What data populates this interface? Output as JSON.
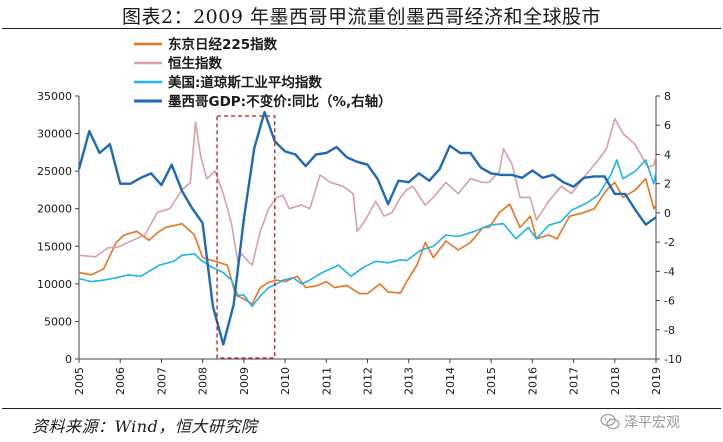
{
  "header": {
    "title": "图表2：2009 年墨西哥甲流重创墨西哥经济和全球股市"
  },
  "footer": {
    "source": "资料来源：Wind，恒大研究院",
    "watermark": "泽平宏观"
  },
  "colors": {
    "nikkei": "#E8741E",
    "hangseng": "#D9A0A6",
    "dow": "#1EB4EC",
    "gdp": "#1E6AB4",
    "highlight": "#B22222"
  },
  "chart_data": {
    "type": "line",
    "title": "",
    "x_tick_labels": [
      "2005",
      "2006",
      "2007",
      "2008",
      "2009",
      "2010",
      "2011",
      "2012",
      "2013",
      "2014",
      "2015",
      "2016",
      "2017",
      "2018",
      "2019"
    ],
    "xlim": [
      2005.0,
      2019.0
    ],
    "y_left": {
      "lim": [
        0,
        35000
      ],
      "ticks": [
        0,
        5000,
        10000,
        15000,
        20000,
        25000,
        30000,
        35000
      ]
    },
    "y_right": {
      "lim": [
        -10,
        8
      ],
      "ticks": [
        -10,
        -8,
        -6,
        -4,
        -2,
        0,
        2,
        4,
        6,
        8
      ]
    },
    "highlight_box": {
      "x_start": 2008.35,
      "x_end": 2009.75
    },
    "legend": [
      "东京日经225指数",
      "恒生指数",
      "美国:道琼斯工业平均指数",
      "墨西哥GDP:不变价:同比（%,右轴）"
    ],
    "series": [
      {
        "name": "东京日经225指数",
        "axis": "left",
        "color_key": "nikkei",
        "points": [
          [
            2005.0,
            11500
          ],
          [
            2005.3,
            11200
          ],
          [
            2005.6,
            12000
          ],
          [
            2005.9,
            15500
          ],
          [
            2006.1,
            16500
          ],
          [
            2006.4,
            17000
          ],
          [
            2006.7,
            15800
          ],
          [
            2006.9,
            16800
          ],
          [
            2007.1,
            17500
          ],
          [
            2007.5,
            18000
          ],
          [
            2007.8,
            16500
          ],
          [
            2008.0,
            13500
          ],
          [
            2008.3,
            13000
          ],
          [
            2008.6,
            12500
          ],
          [
            2008.8,
            8500
          ],
          [
            2009.0,
            8000
          ],
          [
            2009.2,
            7300
          ],
          [
            2009.4,
            9500
          ],
          [
            2009.6,
            10200
          ],
          [
            2009.8,
            10500
          ],
          [
            2010.0,
            10300
          ],
          [
            2010.3,
            11000
          ],
          [
            2010.5,
            9500
          ],
          [
            2010.8,
            9800
          ],
          [
            2011.0,
            10300
          ],
          [
            2011.2,
            9500
          ],
          [
            2011.5,
            9800
          ],
          [
            2011.8,
            8700
          ],
          [
            2012.0,
            8700
          ],
          [
            2012.3,
            10000
          ],
          [
            2012.5,
            8900
          ],
          [
            2012.8,
            8800
          ],
          [
            2012.95,
            10300
          ],
          [
            2013.2,
            12500
          ],
          [
            2013.4,
            15500
          ],
          [
            2013.6,
            13500
          ],
          [
            2013.9,
            15700
          ],
          [
            2014.2,
            14500
          ],
          [
            2014.5,
            15500
          ],
          [
            2014.8,
            17500
          ],
          [
            2014.95,
            17500
          ],
          [
            2015.2,
            19500
          ],
          [
            2015.45,
            20600
          ],
          [
            2015.7,
            17500
          ],
          [
            2015.95,
            19000
          ],
          [
            2016.1,
            16000
          ],
          [
            2016.4,
            16500
          ],
          [
            2016.6,
            16000
          ],
          [
            2016.9,
            19000
          ],
          [
            2017.2,
            19400
          ],
          [
            2017.5,
            20000
          ],
          [
            2017.8,
            22500
          ],
          [
            2018.0,
            23500
          ],
          [
            2018.2,
            21500
          ],
          [
            2018.5,
            22500
          ],
          [
            2018.75,
            24000
          ],
          [
            2018.95,
            20000
          ],
          [
            2019.0,
            20500
          ]
        ]
      },
      {
        "name": "恒生指数",
        "axis": "left",
        "color_key": "hangseng",
        "points": [
          [
            2005.0,
            13800
          ],
          [
            2005.4,
            13600
          ],
          [
            2005.7,
            14800
          ],
          [
            2005.95,
            14900
          ],
          [
            2006.3,
            15800
          ],
          [
            2006.6,
            16500
          ],
          [
            2006.9,
            19500
          ],
          [
            2007.2,
            20000
          ],
          [
            2007.5,
            22500
          ],
          [
            2007.7,
            23500
          ],
          [
            2007.83,
            31500
          ],
          [
            2007.95,
            27000
          ],
          [
            2008.1,
            24000
          ],
          [
            2008.3,
            25000
          ],
          [
            2008.5,
            22000
          ],
          [
            2008.7,
            18000
          ],
          [
            2008.85,
            13000
          ],
          [
            2008.95,
            14000
          ],
          [
            2009.1,
            13000
          ],
          [
            2009.2,
            12500
          ],
          [
            2009.4,
            17000
          ],
          [
            2009.6,
            20000
          ],
          [
            2009.8,
            21500
          ],
          [
            2009.95,
            21800
          ],
          [
            2010.1,
            20000
          ],
          [
            2010.4,
            20500
          ],
          [
            2010.6,
            20000
          ],
          [
            2010.85,
            24500
          ],
          [
            2011.1,
            23500
          ],
          [
            2011.4,
            23000
          ],
          [
            2011.65,
            22000
          ],
          [
            2011.75,
            17000
          ],
          [
            2011.95,
            18500
          ],
          [
            2012.2,
            21000
          ],
          [
            2012.4,
            19000
          ],
          [
            2012.6,
            19500
          ],
          [
            2012.8,
            21500
          ],
          [
            2012.95,
            22500
          ],
          [
            2013.1,
            23000
          ],
          [
            2013.4,
            20500
          ],
          [
            2013.6,
            21500
          ],
          [
            2013.9,
            23500
          ],
          [
            2014.2,
            22000
          ],
          [
            2014.5,
            24000
          ],
          [
            2014.8,
            23500
          ],
          [
            2014.95,
            23500
          ],
          [
            2015.2,
            25000
          ],
          [
            2015.3,
            28000
          ],
          [
            2015.5,
            26000
          ],
          [
            2015.7,
            21500
          ],
          [
            2015.95,
            21500
          ],
          [
            2016.1,
            18500
          ],
          [
            2016.4,
            21000
          ],
          [
            2016.7,
            23000
          ],
          [
            2016.95,
            22000
          ],
          [
            2017.3,
            24500
          ],
          [
            2017.6,
            26500
          ],
          [
            2017.8,
            28000
          ],
          [
            2018.0,
            32000
          ],
          [
            2018.2,
            30000
          ],
          [
            2018.5,
            28500
          ],
          [
            2018.8,
            25500
          ],
          [
            2018.95,
            25800
          ],
          [
            2019.0,
            27000
          ]
        ]
      },
      {
        "name": "美国:道琼斯工业平均指数",
        "axis": "left",
        "color_key": "dow",
        "points": [
          [
            2005.0,
            10700
          ],
          [
            2005.3,
            10300
          ],
          [
            2005.6,
            10500
          ],
          [
            2005.9,
            10800
          ],
          [
            2006.2,
            11200
          ],
          [
            2006.5,
            11000
          ],
          [
            2006.8,
            12000
          ],
          [
            2006.95,
            12500
          ],
          [
            2007.3,
            13000
          ],
          [
            2007.5,
            13800
          ],
          [
            2007.8,
            14000
          ],
          [
            2007.95,
            13200
          ],
          [
            2008.2,
            12300
          ],
          [
            2008.5,
            11500
          ],
          [
            2008.7,
            10500
          ],
          [
            2008.85,
            8500
          ],
          [
            2009.0,
            8500
          ],
          [
            2009.2,
            7000
          ],
          [
            2009.4,
            8400
          ],
          [
            2009.6,
            9500
          ],
          [
            2009.8,
            10000
          ],
          [
            2009.95,
            10500
          ],
          [
            2010.2,
            10800
          ],
          [
            2010.4,
            10000
          ],
          [
            2010.6,
            10500
          ],
          [
            2010.9,
            11500
          ],
          [
            2011.3,
            12500
          ],
          [
            2011.6,
            11000
          ],
          [
            2011.9,
            12200
          ],
          [
            2012.2,
            13000
          ],
          [
            2012.5,
            12800
          ],
          [
            2012.8,
            13200
          ],
          [
            2012.95,
            13100
          ],
          [
            2013.3,
            14500
          ],
          [
            2013.6,
            15000
          ],
          [
            2013.9,
            16500
          ],
          [
            2014.2,
            16300
          ],
          [
            2014.6,
            17000
          ],
          [
            2014.95,
            17800
          ],
          [
            2015.3,
            18000
          ],
          [
            2015.6,
            16000
          ],
          [
            2015.9,
            17500
          ],
          [
            2016.1,
            16000
          ],
          [
            2016.4,
            17800
          ],
          [
            2016.7,
            18300
          ],
          [
            2016.95,
            19800
          ],
          [
            2017.3,
            20700
          ],
          [
            2017.6,
            21800
          ],
          [
            2017.9,
            24500
          ],
          [
            2018.05,
            26500
          ],
          [
            2018.2,
            24000
          ],
          [
            2018.5,
            25000
          ],
          [
            2018.75,
            26500
          ],
          [
            2018.95,
            23300
          ],
          [
            2019.0,
            25000
          ]
        ]
      },
      {
        "name": "墨西哥GDP:不变价:同比（%,右轴）",
        "axis": "right",
        "color_key": "gdp",
        "points": [
          [
            2005.0,
            3.0
          ],
          [
            2005.25,
            5.6
          ],
          [
            2005.5,
            4.1
          ],
          [
            2005.75,
            4.7
          ],
          [
            2006.0,
            2.0
          ],
          [
            2006.25,
            2.0
          ],
          [
            2006.5,
            2.4
          ],
          [
            2006.75,
            2.7
          ],
          [
            2007.0,
            1.9
          ],
          [
            2007.25,
            3.3
          ],
          [
            2007.5,
            1.5
          ],
          [
            2007.75,
            0.3
          ],
          [
            2008.0,
            -0.7
          ],
          [
            2008.25,
            -6.4
          ],
          [
            2008.5,
            -9.0
          ],
          [
            2008.75,
            -6.3
          ],
          [
            2009.0,
            -0.4
          ],
          [
            2009.25,
            4.4
          ],
          [
            2009.5,
            6.9
          ],
          [
            2009.75,
            4.9
          ],
          [
            2010.0,
            4.2
          ],
          [
            2010.25,
            4.0
          ],
          [
            2010.5,
            3.2
          ],
          [
            2010.75,
            4.0
          ],
          [
            2011.0,
            4.1
          ],
          [
            2011.25,
            4.5
          ],
          [
            2011.5,
            3.8
          ],
          [
            2011.75,
            3.5
          ],
          [
            2012.0,
            3.3
          ],
          [
            2012.25,
            2.3
          ],
          [
            2012.5,
            0.6
          ],
          [
            2012.75,
            2.2
          ],
          [
            2013.0,
            2.1
          ],
          [
            2013.25,
            2.7
          ],
          [
            2013.5,
            2.2
          ],
          [
            2013.75,
            3.0
          ],
          [
            2014.0,
            4.6
          ],
          [
            2014.25,
            4.1
          ],
          [
            2014.5,
            4.1
          ],
          [
            2014.75,
            3.1
          ],
          [
            2015.0,
            2.7
          ],
          [
            2015.25,
            2.6
          ],
          [
            2015.5,
            2.6
          ],
          [
            2015.75,
            2.4
          ],
          [
            2016.0,
            2.9
          ],
          [
            2016.25,
            2.4
          ],
          [
            2016.5,
            2.6
          ],
          [
            2016.75,
            2.1
          ],
          [
            2017.0,
            1.8
          ],
          [
            2017.25,
            2.4
          ],
          [
            2017.5,
            2.5
          ],
          [
            2017.75,
            2.5
          ],
          [
            2018.0,
            1.3
          ],
          [
            2018.25,
            1.3
          ],
          [
            2018.5,
            0.2
          ],
          [
            2018.75,
            -0.8
          ],
          [
            2019.0,
            -0.3
          ]
        ]
      }
    ]
  }
}
